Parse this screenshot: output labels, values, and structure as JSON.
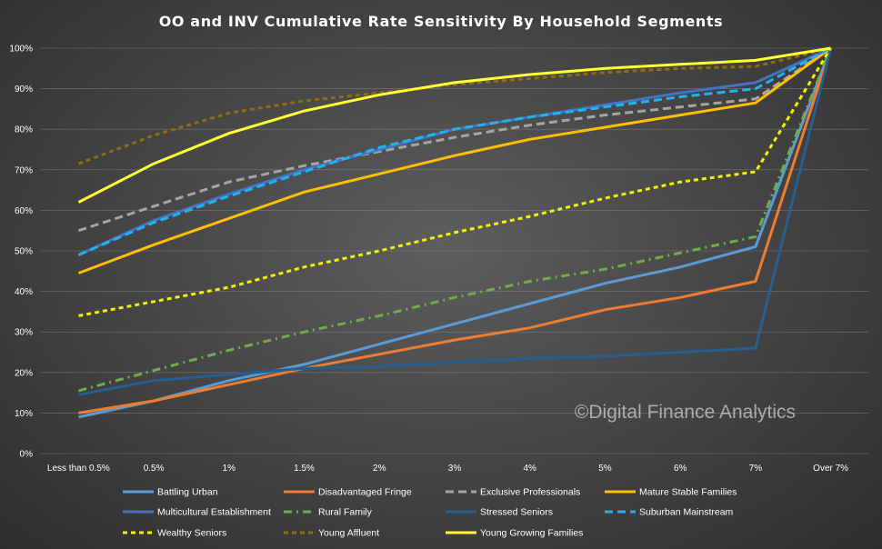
{
  "chart_data": {
    "type": "line",
    "title": "OO and INV Cumulative  Rate Sensitivity  By Household  Segments",
    "xlabel": "",
    "ylabel": "",
    "ylim": [
      0,
      100
    ],
    "ytick_step": 10,
    "y_format": "percent",
    "categories": [
      "Less than 0.5%",
      "0.5%",
      "1%",
      "1.5%",
      "2%",
      "3%",
      "4%",
      "5%",
      "6%",
      "7%",
      "Over 7%"
    ],
    "grid": true,
    "legend_position": "bottom",
    "watermark": "©Digital Finance Analytics",
    "series": [
      {
        "name": "Battling Urban",
        "color": "#5b9bd5",
        "dash": "solid",
        "values": [
          9,
          13,
          18,
          22,
          27,
          32,
          37,
          42,
          46,
          51,
          100
        ]
      },
      {
        "name": "Disadvantaged Fringe",
        "color": "#ed7d31",
        "dash": "solid",
        "values": [
          10,
          13,
          17,
          21,
          24.5,
          28,
          31,
          35.5,
          38.5,
          42.5,
          100
        ]
      },
      {
        "name": "Exclusive Professionals",
        "color": "#a5a5a5",
        "dash": "dash",
        "values": [
          55,
          61,
          67,
          71,
          74.5,
          78,
          81,
          83.5,
          85.5,
          87.5,
          100
        ]
      },
      {
        "name": "Mature Stable Families",
        "color": "#ffc000",
        "dash": "solid",
        "values": [
          44.5,
          51.5,
          58,
          64.5,
          69,
          73.5,
          77.5,
          80.5,
          83.5,
          86.5,
          100
        ]
      },
      {
        "name": "Multicultural Establishment",
        "color": "#4472c4",
        "dash": "solid",
        "values": [
          49,
          57.5,
          64,
          70,
          75,
          80,
          83,
          86,
          89,
          91.5,
          100
        ]
      },
      {
        "name": "Rural Family",
        "color": "#70ad47",
        "dash": "dashdot",
        "values": [
          15.5,
          20.5,
          25.5,
          30,
          34,
          38.5,
          42.5,
          45.5,
          49.5,
          53.5,
          100
        ]
      },
      {
        "name": "Stressed Seniors",
        "color": "#255e91",
        "dash": "solid",
        "values": [
          14.5,
          18,
          19.5,
          21,
          21.5,
          22.5,
          23.5,
          24,
          25,
          26,
          100
        ]
      },
      {
        "name": "Suburban Mainstream",
        "color": "#1fb4ee",
        "dash": "dash",
        "values": [
          49,
          57,
          63.5,
          69.5,
          75.5,
          80,
          83,
          85.5,
          88,
          90,
          100
        ]
      },
      {
        "name": "Wealthy Seniors",
        "color": "#f3f300",
        "dash": "shortdash",
        "values": [
          34,
          37.5,
          41,
          46,
          50,
          54.5,
          58.5,
          63,
          67,
          69.5,
          100
        ]
      },
      {
        "name": "Young Affluent",
        "color": "#8c6d10",
        "dash": "shortdash",
        "values": [
          71.5,
          78.5,
          84,
          87,
          89,
          91,
          92.5,
          94,
          95,
          95.5,
          100
        ]
      },
      {
        "name": "Young Growing Families",
        "color": "#ffff33",
        "dash": "solid",
        "values": [
          62,
          71.5,
          79,
          84.5,
          88.5,
          91.5,
          93.5,
          95,
          96,
          97,
          100
        ]
      }
    ]
  }
}
